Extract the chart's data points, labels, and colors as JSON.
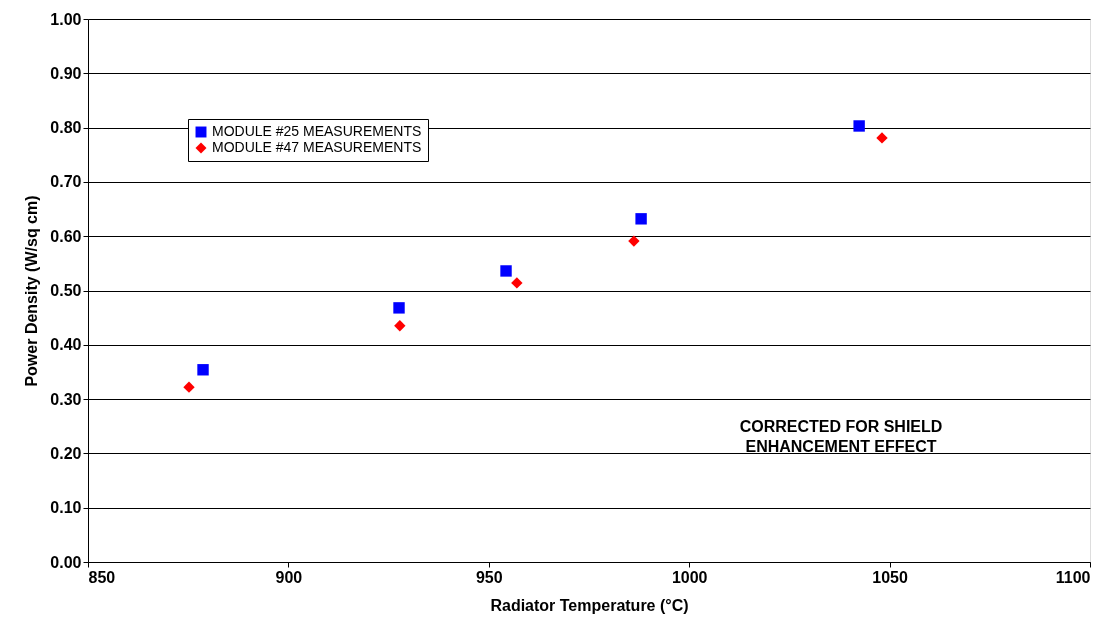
{
  "chart_data": {
    "type": "scatter",
    "xlabel": "Radiator Temperature (°C)",
    "ylabel": "Power Density (W/sq cm)",
    "xlim": [
      850,
      1100
    ],
    "xticks": [
      850,
      900,
      950,
      1000,
      1050,
      1100
    ],
    "ylim": [
      0,
      1
    ],
    "yticks": [
      {
        "value": 0,
        "label": "0.00"
      },
      {
        "value": 0.1,
        "label": "0.10"
      },
      {
        "value": 0.2,
        "label": "0.20"
      },
      {
        "value": 0.3,
        "label": "0.30"
      },
      {
        "value": 0.4,
        "label": "0.40"
      },
      {
        "value": 0.5,
        "label": "0.50"
      },
      {
        "value": 0.6,
        "label": "0.60"
      },
      {
        "value": 0.7,
        "label": "0.70"
      },
      {
        "value": 0.8,
        "label": "0.80"
      },
      {
        "value": 0.9,
        "label": "0.90"
      },
      {
        "value": 1,
        "label": "1.00"
      }
    ],
    "grid": "y",
    "legend": "top left",
    "annotations": [
      "CORRECTED FOR SHIELD ENHANCEMENT EFFECT"
    ],
    "series": [
      {
        "name": "MODULE #25 MEASUREMENTS",
        "color": "#0000ff",
        "marker": "square",
        "x": [
          878.7,
          927.6,
          954.3,
          988.0,
          1042.4
        ],
        "values": [
          0.354,
          0.468,
          0.536,
          0.632,
          0.803
        ]
      },
      {
        "name": "MODULE #47 MEASUREMENTS",
        "color": "#ff0000",
        "marker": "diamond",
        "x": [
          875.2,
          927.8,
          957.0,
          986.2,
          1048.1
        ],
        "values": [
          0.322,
          0.435,
          0.514,
          0.591,
          0.781
        ]
      }
    ]
  }
}
